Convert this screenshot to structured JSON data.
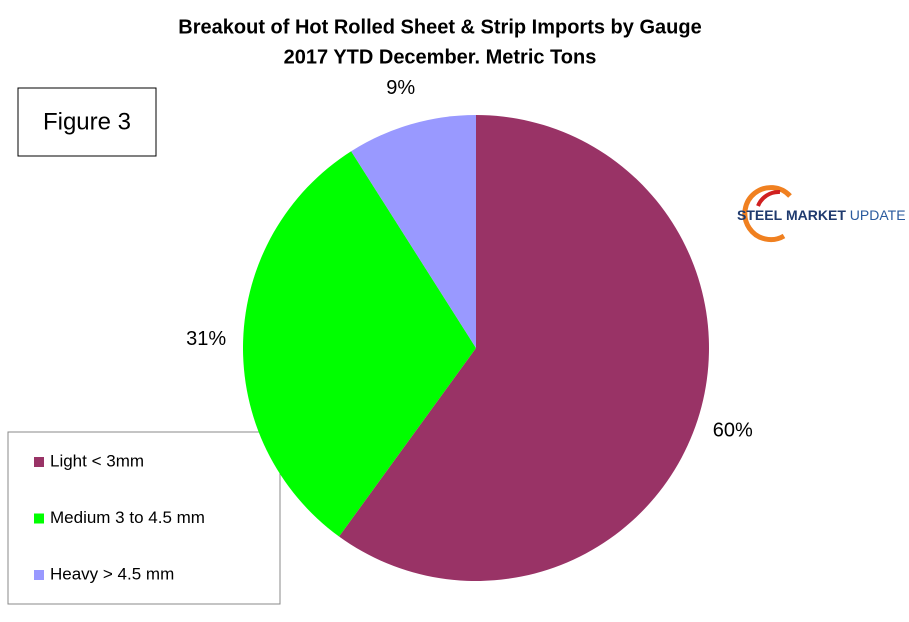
{
  "chart_data": {
    "type": "pie",
    "title": "Breakout of Hot Rolled Sheet & Strip Imports by Gauge",
    "subtitle": "2017 YTD December. Metric Tons",
    "figure_label": "Figure 3",
    "logo_text": [
      "STEEL",
      "MARKET",
      "UPDATE"
    ],
    "categories": [
      "Light < 3mm",
      "Medium 3 to 4.5 mm",
      "Heavy > 4.5 mm"
    ],
    "values": [
      60,
      31,
      9
    ],
    "value_labels": [
      "60%",
      "31%",
      "9%"
    ],
    "colors": [
      "#993366",
      "#00ff00",
      "#9999ff"
    ],
    "legend": "bottom-left"
  }
}
